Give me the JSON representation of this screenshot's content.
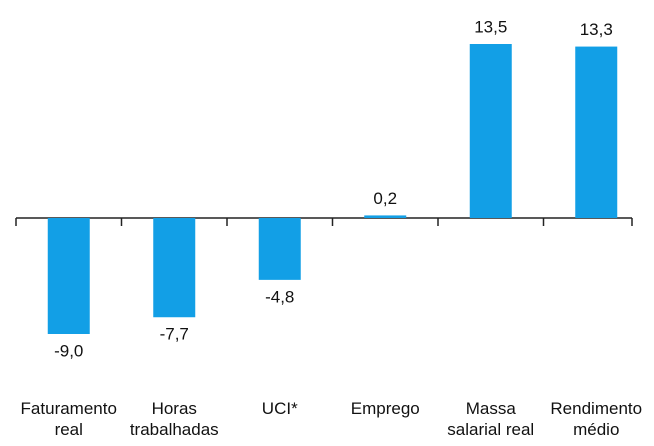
{
  "chart_data": {
    "type": "bar",
    "categories": [
      "Faturamento\nreal",
      "Horas\ntrabalhadas",
      "UCI*",
      "Emprego",
      "Massa\nsalarial real",
      "Rendimento\nmédio"
    ],
    "values": [
      -9.0,
      -7.7,
      -4.8,
      0.2,
      13.5,
      13.3
    ],
    "value_labels": [
      "-9,0",
      "-7,7",
      "-4,8",
      "0,2",
      "13,5",
      "13,3"
    ],
    "color": "#129fe6"
  }
}
